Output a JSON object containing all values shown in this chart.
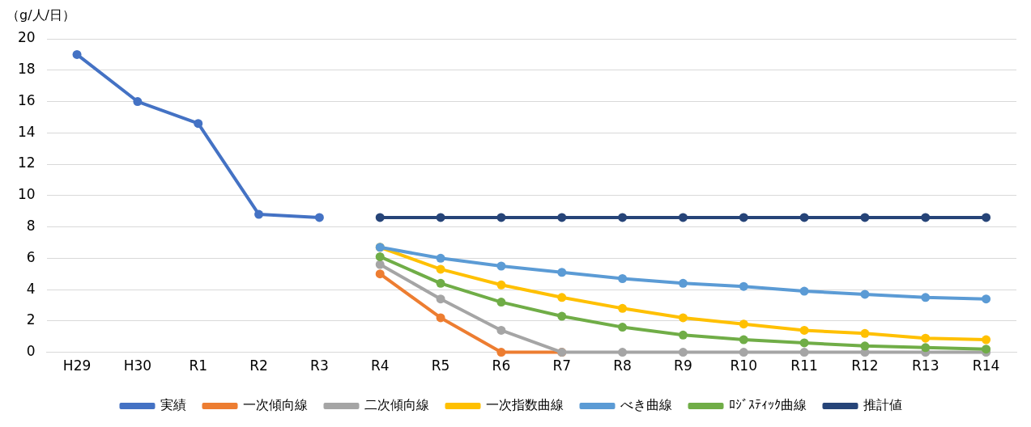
{
  "chart_data": {
    "type": "line",
    "ylabel": "（g/人/日）",
    "categories": [
      "H29",
      "H30",
      "R1",
      "R2",
      "R3",
      "R4",
      "R5",
      "R6",
      "R7",
      "R8",
      "R9",
      "R10",
      "R11",
      "R12",
      "R13",
      "R14"
    ],
    "ylim": [
      0,
      20
    ],
    "yticks": [
      0,
      2,
      4,
      6,
      8,
      10,
      12,
      14,
      16,
      18,
      20
    ],
    "grid": "y",
    "legend": "bottom",
    "marker": "circle",
    "line_style": "solid",
    "series": [
      {
        "name": "実績",
        "color": "#4472c4",
        "values": [
          19.0,
          16.0,
          14.6,
          8.8,
          8.6,
          null,
          null,
          null,
          null,
          null,
          null,
          null,
          null,
          null,
          null,
          null
        ]
      },
      {
        "name": "一次傾向線",
        "color": "#ed7d31",
        "values": [
          null,
          null,
          null,
          null,
          null,
          5.0,
          2.2,
          0,
          0,
          null,
          null,
          null,
          null,
          null,
          null,
          null
        ]
      },
      {
        "name": "二次傾向線",
        "color": "#a5a5a5",
        "values": [
          null,
          null,
          null,
          null,
          null,
          5.6,
          3.4,
          1.4,
          0,
          0,
          0,
          0,
          0,
          0,
          0,
          0
        ]
      },
      {
        "name": "一次指数曲線",
        "color": "#ffc000",
        "values": [
          null,
          null,
          null,
          null,
          null,
          6.7,
          5.3,
          4.3,
          3.5,
          2.8,
          2.2,
          1.8,
          1.4,
          1.2,
          0.9,
          0.8
        ]
      },
      {
        "name": "べき曲線",
        "color": "#5b9bd5",
        "values": [
          null,
          null,
          null,
          null,
          null,
          6.7,
          6.0,
          5.5,
          5.1,
          4.7,
          4.4,
          4.2,
          3.9,
          3.7,
          3.5,
          3.4
        ]
      },
      {
        "name": "ﾛｼﾞｽﾃｨｯｸ曲線",
        "color": "#70ad47",
        "values": [
          null,
          null,
          null,
          null,
          null,
          6.1,
          4.4,
          3.2,
          2.3,
          1.6,
          1.1,
          0.8,
          0.6,
          0.4,
          0.3,
          0.2
        ]
      },
      {
        "name": "推計値",
        "color": "#264478",
        "values": [
          null,
          null,
          null,
          null,
          null,
          8.6,
          8.6,
          8.6,
          8.6,
          8.6,
          8.6,
          8.6,
          8.6,
          8.6,
          8.6,
          8.6
        ]
      }
    ]
  }
}
